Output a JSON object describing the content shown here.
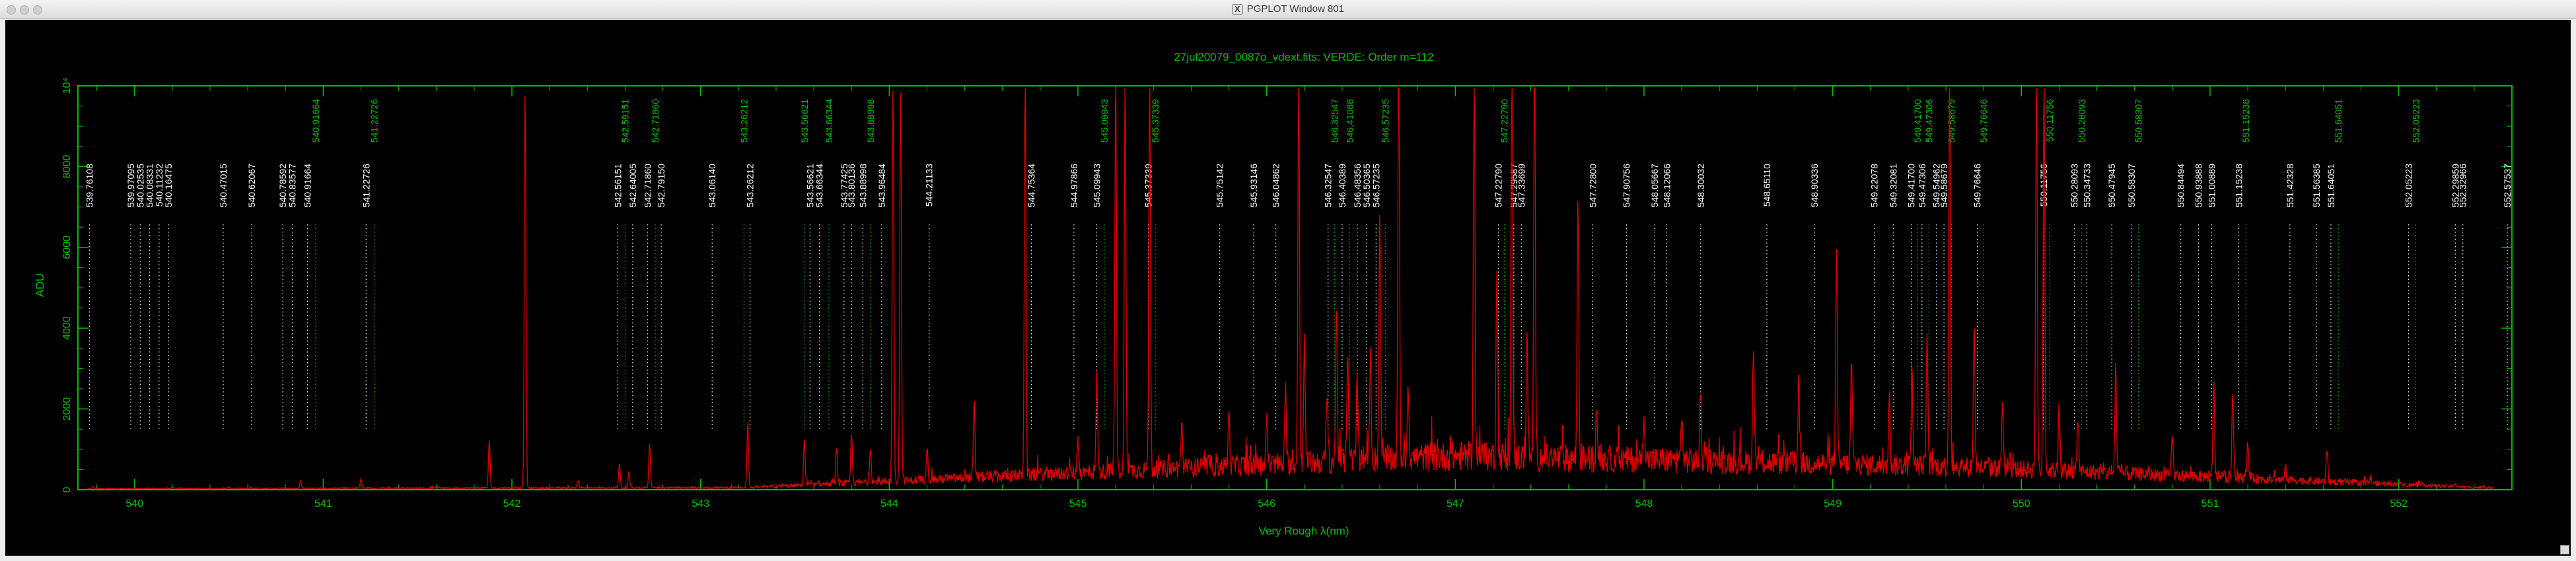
{
  "window": {
    "title": "PGPLOT Window 801"
  },
  "chart_data": {
    "type": "line",
    "title": "27jul20079_0087o_vdext.fits: VERDE: Order m=112",
    "xlabel": "Very Rough λ(nm)",
    "ylabel": "ADU",
    "xlim": [
      539.7,
      552.6
    ],
    "ylim": [
      0,
      10000
    ],
    "x_ticks": [
      540,
      541,
      542,
      543,
      544,
      545,
      546,
      547,
      548,
      549,
      550,
      551,
      552
    ],
    "y_ticks": [
      {
        "value": 0,
        "label": "0"
      },
      {
        "value": 2000,
        "label": "2000"
      },
      {
        "value": 4000,
        "label": "4000"
      },
      {
        "value": 6000,
        "label": "6000"
      },
      {
        "value": 8000,
        "label": "8000"
      },
      {
        "value": 10000,
        "label": "10⁴"
      }
    ],
    "colors": {
      "frame": "#00c000",
      "spectrum": "#e00000",
      "label_line_list": "#ffffff",
      "label_fitted": "#00c000",
      "background": "#000000"
    },
    "series": [
      {
        "peaks": [
          [
            539.78,
            60
          ],
          [
            540.2,
            40
          ],
          [
            540.5,
            30
          ],
          [
            540.88,
            180
          ],
          [
            541.2,
            220
          ],
          [
            541.6,
            60
          ],
          [
            541.88,
            1200
          ],
          [
            542.07,
            9950
          ],
          [
            542.35,
            180
          ],
          [
            542.57,
            600
          ],
          [
            542.62,
            400
          ],
          [
            542.73,
            1100
          ],
          [
            543.25,
            1650
          ],
          [
            543.55,
            1150
          ],
          [
            543.72,
            900
          ],
          [
            543.8,
            1250
          ],
          [
            543.9,
            900
          ],
          [
            544.02,
            9950
          ],
          [
            544.06,
            9950
          ],
          [
            544.2,
            850
          ],
          [
            544.45,
            1850
          ],
          [
            544.72,
            9950
          ],
          [
            545.0,
            900
          ],
          [
            545.1,
            2400
          ],
          [
            545.2,
            9950
          ],
          [
            545.25,
            9950
          ],
          [
            545.38,
            9950
          ],
          [
            545.55,
            1100
          ],
          [
            545.8,
            1300
          ],
          [
            546.0,
            1150
          ],
          [
            546.1,
            1550
          ],
          [
            546.17,
            9950
          ],
          [
            546.2,
            3200
          ],
          [
            546.32,
            1700
          ],
          [
            546.37,
            3950
          ],
          [
            546.43,
            2900
          ],
          [
            546.48,
            2050
          ],
          [
            546.55,
            2600
          ],
          [
            546.6,
            6150
          ],
          [
            546.7,
            9950
          ],
          [
            546.75,
            2000
          ],
          [
            547.1,
            9950
          ],
          [
            547.22,
            4950
          ],
          [
            547.3,
            9950
          ],
          [
            547.38,
            3050
          ],
          [
            547.42,
            9950
          ],
          [
            547.65,
            6400
          ],
          [
            547.75,
            1050
          ],
          [
            548.0,
            1300
          ],
          [
            548.2,
            1250
          ],
          [
            548.3,
            1750
          ],
          [
            548.58,
            2950
          ],
          [
            548.82,
            2100
          ],
          [
            549.02,
            5150
          ],
          [
            549.1,
            2650
          ],
          [
            549.3,
            1800
          ],
          [
            549.42,
            2350
          ],
          [
            549.5,
            3100
          ],
          [
            549.62,
            9950
          ],
          [
            549.75,
            3700
          ],
          [
            549.9,
            1750
          ],
          [
            550.08,
            9950
          ],
          [
            550.12,
            9950
          ],
          [
            550.2,
            1750
          ],
          [
            550.3,
            1400
          ],
          [
            550.5,
            2750
          ],
          [
            550.8,
            1050
          ],
          [
            551.02,
            2350
          ],
          [
            551.12,
            2100
          ],
          [
            551.2,
            900
          ],
          [
            551.4,
            300
          ],
          [
            551.62,
            800
          ],
          [
            551.85,
            150
          ],
          [
            552.0,
            120
          ],
          [
            552.3,
            90
          ],
          [
            552.45,
            60
          ]
        ]
      }
    ],
    "line_labels": [
      {
        "x": 539.76108,
        "text": "539.76108",
        "fitted": false
      },
      {
        "x": 539.98,
        "text": "539.97095",
        "fitted": false
      },
      {
        "x": 540.03,
        "text": "540.02535",
        "fitted": false
      },
      {
        "x": 540.08,
        "text": "540.08331",
        "fitted": false
      },
      {
        "x": 540.13,
        "text": "540.11232",
        "fitted": false
      },
      {
        "x": 540.18,
        "text": "540.16475",
        "fitted": false
      },
      {
        "x": 540.47015,
        "text": "540.47015",
        "fitted": false
      },
      {
        "x": 540.62067,
        "text": "540.62067",
        "fitted": false
      },
      {
        "x": 540.78592,
        "text": "540.78592",
        "fitted": false
      },
      {
        "x": 540.83577,
        "text": "540.83577",
        "fitted": false
      },
      {
        "x": 540.91664,
        "text": "540.91664",
        "fitted": false
      },
      {
        "x": 540.96,
        "text": "540.91664",
        "fitted": true
      },
      {
        "x": 541.22726,
        "text": "541.22726",
        "fitted": false
      },
      {
        "x": 541.27,
        "text": "541.22726",
        "fitted": true
      },
      {
        "x": 542.56151,
        "text": "542.56151",
        "fitted": false
      },
      {
        "x": 542.6,
        "text": "542.59151",
        "fitted": true
      },
      {
        "x": 542.64005,
        "text": "542.64005",
        "fitted": false
      },
      {
        "x": 542.7186,
        "text": "542.71860",
        "fitted": false
      },
      {
        "x": 542.76,
        "text": "542.71860",
        "fitted": true
      },
      {
        "x": 542.7915,
        "text": "542.79150",
        "fitted": false
      },
      {
        "x": 543.0614,
        "text": "543.06140",
        "fitted": false
      },
      {
        "x": 543.23,
        "text": "543.26212",
        "fitted": true
      },
      {
        "x": 543.26212,
        "text": "543.26212",
        "fitted": false
      },
      {
        "x": 543.55,
        "text": "543.56621",
        "fitted": true
      },
      {
        "x": 543.58,
        "text": "543.56621",
        "fitted": false
      },
      {
        "x": 543.63,
        "text": "543.66344",
        "fitted": false
      },
      {
        "x": 543.68,
        "text": "543.66344",
        "fitted": true
      },
      {
        "x": 543.76,
        "text": "543.77425",
        "fitted": false
      },
      {
        "x": 543.8,
        "text": "543.80136",
        "fitted": false
      },
      {
        "x": 543.86,
        "text": "543.88998",
        "fitted": false
      },
      {
        "x": 543.9,
        "text": "543.88998",
        "fitted": true
      },
      {
        "x": 543.96,
        "text": "543.96484",
        "fitted": false
      },
      {
        "x": 544.21133,
        "text": "544.21133",
        "fitted": false
      },
      {
        "x": 544.75364,
        "text": "544.75364",
        "fitted": false
      },
      {
        "x": 544.97866,
        "text": "544.97866",
        "fitted": false
      },
      {
        "x": 545.09943,
        "text": "545.09943",
        "fitted": false
      },
      {
        "x": 545.14,
        "text": "545.09943",
        "fitted": true
      },
      {
        "x": 545.37339,
        "text": "545.37339",
        "fitted": false
      },
      {
        "x": 545.41,
        "text": "545.37339",
        "fitted": true
      },
      {
        "x": 545.75142,
        "text": "545.75142",
        "fitted": false
      },
      {
        "x": 545.93146,
        "text": "545.93146",
        "fitted": false
      },
      {
        "x": 546.04862,
        "text": "546.04862",
        "fitted": false
      },
      {
        "x": 546.32547,
        "text": "546.32547",
        "fitted": false
      },
      {
        "x": 546.36,
        "text": "546.32547",
        "fitted": true
      },
      {
        "x": 546.4,
        "text": "546.40389",
        "fitted": false
      },
      {
        "x": 546.44,
        "text": "546.41088",
        "fitted": true
      },
      {
        "x": 546.48,
        "text": "546.48356",
        "fitted": false
      },
      {
        "x": 546.53,
        "text": "546.50365",
        "fitted": false
      },
      {
        "x": 546.58,
        "text": "546.57235",
        "fitted": false
      },
      {
        "x": 546.63,
        "text": "546.57235",
        "fitted": true
      },
      {
        "x": 547.2279,
        "text": "547.22790",
        "fitted": false
      },
      {
        "x": 547.26,
        "text": "547.22790",
        "fitted": true
      },
      {
        "x": 547.31,
        "text": "547.29587",
        "fitted": false
      },
      {
        "x": 547.35,
        "text": "547.33699",
        "fitted": false
      },
      {
        "x": 547.728,
        "text": "547.72800",
        "fitted": false
      },
      {
        "x": 547.90756,
        "text": "547.90756",
        "fitted": false
      },
      {
        "x": 548.05667,
        "text": "548.05667",
        "fitted": false
      },
      {
        "x": 548.12066,
        "text": "548.12066",
        "fitted": false
      },
      {
        "x": 548.30032,
        "text": "548.30032",
        "fitted": false
      },
      {
        "x": 548.6511,
        "text": "548.65110",
        "fitted": false
      },
      {
        "x": 548.90336,
        "text": "548.90336",
        "fitted": false
      },
      {
        "x": 549.22078,
        "text": "549.22078",
        "fitted": false
      },
      {
        "x": 549.32081,
        "text": "549.32081",
        "fitted": false
      },
      {
        "x": 549.417,
        "text": "549.41700",
        "fitted": false
      },
      {
        "x": 549.45,
        "text": "549.41700",
        "fitted": true
      },
      {
        "x": 549.47306,
        "text": "549.47306",
        "fitted": false
      },
      {
        "x": 549.51,
        "text": "549.47306",
        "fitted": true
      },
      {
        "x": 549.55,
        "text": "549.54962",
        "fitted": false
      },
      {
        "x": 549.59,
        "text": "549.58679",
        "fitted": false
      },
      {
        "x": 549.63,
        "text": "549.58679",
        "fitted": true
      },
      {
        "x": 549.76646,
        "text": "549.76646",
        "fitted": false
      },
      {
        "x": 549.8,
        "text": "549.76646",
        "fitted": true
      },
      {
        "x": 550.11756,
        "text": "550.11756",
        "fitted": false
      },
      {
        "x": 550.15,
        "text": "550.11756",
        "fitted": true
      },
      {
        "x": 550.28093,
        "text": "550.28093",
        "fitted": false
      },
      {
        "x": 550.32,
        "text": "550.28093",
        "fitted": true
      },
      {
        "x": 550.34733,
        "text": "550.34733",
        "fitted": false
      },
      {
        "x": 550.47945,
        "text": "550.47945",
        "fitted": false
      },
      {
        "x": 550.58307,
        "text": "550.58307",
        "fitted": false
      },
      {
        "x": 550.62,
        "text": "550.58307",
        "fitted": true
      },
      {
        "x": 550.84494,
        "text": "550.84494",
        "fitted": false
      },
      {
        "x": 550.93888,
        "text": "550.93888",
        "fitted": false
      },
      {
        "x": 551.00889,
        "text": "551.00889",
        "fitted": false
      },
      {
        "x": 551.15238,
        "text": "551.15238",
        "fitted": false
      },
      {
        "x": 551.19,
        "text": "551.15238",
        "fitted": true
      },
      {
        "x": 551.42328,
        "text": "551.42328",
        "fitted": false
      },
      {
        "x": 551.56385,
        "text": "551.56385",
        "fitted": false
      },
      {
        "x": 551.64051,
        "text": "551.64051",
        "fitted": false
      },
      {
        "x": 551.68,
        "text": "551.64051",
        "fitted": true
      },
      {
        "x": 552.05223,
        "text": "552.05223",
        "fitted": false
      },
      {
        "x": 552.09,
        "text": "552.05223",
        "fitted": true
      },
      {
        "x": 552.3,
        "text": "552.29859",
        "fitted": false
      },
      {
        "x": 552.34,
        "text": "552.32966",
        "fitted": false
      },
      {
        "x": 552.57537,
        "text": "552.57537",
        "fitted": false
      }
    ]
  }
}
